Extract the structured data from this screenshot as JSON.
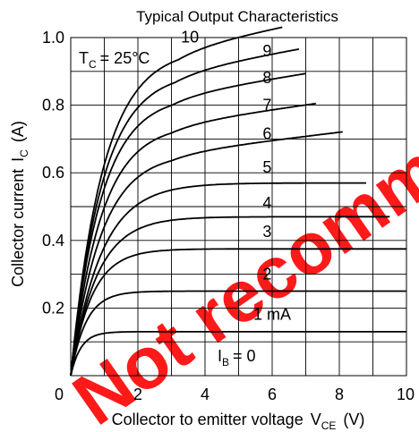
{
  "chart_data": {
    "type": "line",
    "title": "Typical Output Characteristics",
    "xlabel": "Collector to emitter voltage",
    "xlabel_symbol": "V",
    "xlabel_sub": "CE",
    "xlabel_unit": "(V)",
    "ylabel": "Collector current",
    "ylabel_symbol": "I",
    "ylabel_sub": "C",
    "ylabel_unit": "(A)",
    "xlim": [
      0,
      10
    ],
    "ylim": [
      0,
      1.0
    ],
    "xticks": [
      0,
      2,
      4,
      6,
      8,
      10
    ],
    "yticks": [
      0.2,
      0.4,
      0.6,
      0.8,
      1.0
    ],
    "ytick_labels": [
      "0.2",
      "0.4",
      "0.6",
      "0.8",
      "1.0"
    ],
    "grid": true,
    "condition": {
      "symbol": "T",
      "sub": "C",
      "text": "= 25°C"
    },
    "ib_zero_label": {
      "symbol": "I",
      "sub": "B",
      "text": "= 0"
    },
    "series": [
      {
        "name": "1 mA",
        "sat": 0.13,
        "knee": 1.0,
        "xend": 10.0
      },
      {
        "name": "2",
        "sat": 0.25,
        "knee": 1.5,
        "xend": 10.0
      },
      {
        "name": "3",
        "sat": 0.375,
        "knee": 2.1,
        "xend": 10.0
      },
      {
        "name": "4",
        "sat": 0.47,
        "knee": 2.6,
        "xend": 9.5
      },
      {
        "name": "5",
        "sat": 0.57,
        "knee": 3.0,
        "xend": 8.8
      },
      {
        "name": "6",
        "sat": 0.66,
        "knee": 3.0,
        "xend": 8.1,
        "drift": 0.012
      },
      {
        "name": "7",
        "sat": 0.745,
        "knee": 3.0,
        "xend": 7.3,
        "drift": 0.014
      },
      {
        "name": "8",
        "sat": 0.83,
        "knee": 3.0,
        "xend": 7.0,
        "drift": 0.016
      },
      {
        "name": "9",
        "sat": 0.9,
        "knee": 3.1,
        "xend": 6.8,
        "drift": 0.018
      },
      {
        "name": "10",
        "sat": 0.97,
        "knee": 3.2,
        "xend": 6.3,
        "drift": 0.02
      }
    ],
    "curve_labels": [
      {
        "text": "10",
        "x": 3.55,
        "y": 0.985
      },
      {
        "text": "9",
        "x": 5.85,
        "y": 0.945
      },
      {
        "text": "8",
        "x": 5.85,
        "y": 0.865
      },
      {
        "text": "7",
        "x": 5.85,
        "y": 0.785
      },
      {
        "text": "6",
        "x": 5.85,
        "y": 0.7
      },
      {
        "text": "5",
        "x": 5.85,
        "y": 0.6
      },
      {
        "text": "4",
        "x": 5.85,
        "y": 0.495
      },
      {
        "text": "3",
        "x": 5.85,
        "y": 0.41
      },
      {
        "text": "2",
        "x": 5.85,
        "y": 0.285
      },
      {
        "text": "1 mA",
        "x": 6.0,
        "y": 0.165
      }
    ]
  },
  "watermark": {
    "text": "Not recommended for new design",
    "color": "#ff1a1a"
  }
}
